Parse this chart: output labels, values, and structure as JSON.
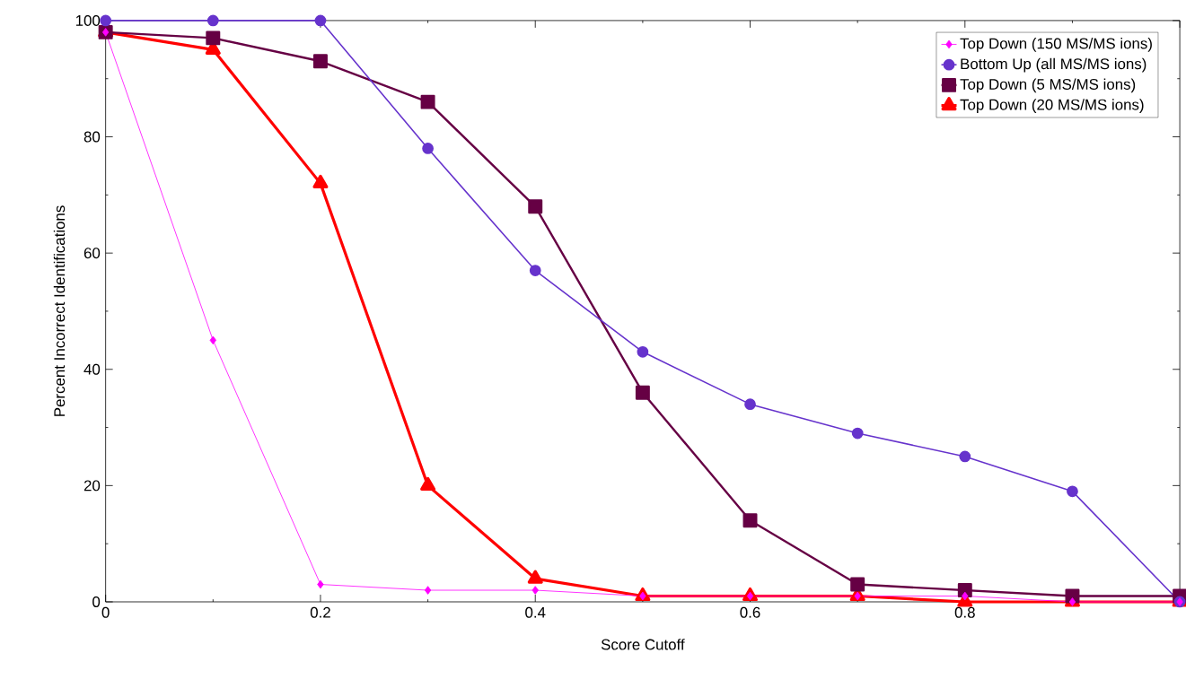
{
  "chart_data": {
    "type": "line",
    "xlabel": "Score Cutoff",
    "ylabel": "Percent Incorrect Identifications",
    "x": [
      0,
      0.1,
      0.2,
      0.3,
      0.4,
      0.5,
      0.6,
      0.7,
      0.8,
      0.9,
      1
    ],
    "xlim": [
      0,
      1
    ],
    "xticks": [
      0,
      0.2,
      0.4,
      0.6,
      0.8,
      {
        "value": 1,
        "label": null
      }
    ],
    "ylim": [
      0,
      100
    ],
    "yticks": [
      0,
      20,
      40,
      60,
      80,
      100
    ],
    "grid": false,
    "legend": "top right",
    "series": [
      {
        "name": "Bottom Up (all MS/MS ions)",
        "color": "#6633cc",
        "marker": "circle",
        "values": [
          100,
          100,
          100,
          78,
          57,
          43,
          34,
          29,
          25,
          19,
          0
        ]
      },
      {
        "name": "Top Down (5 MS/MS ions)",
        "color": "#660044",
        "marker": "square",
        "values": [
          98,
          97,
          93,
          86,
          68,
          36,
          14,
          3,
          2,
          1,
          1
        ]
      },
      {
        "name": "Top Down (150 MS/MS ions)",
        "color": "#ff00ff",
        "marker": "diamond",
        "values": [
          98,
          45,
          3,
          2,
          2,
          1,
          1,
          1,
          1,
          0,
          0
        ]
      },
      {
        "name": "Top Down (20 MS/MS ions)",
        "color": "#ff0000",
        "marker": "triangle",
        "values": [
          98,
          95,
          72,
          20,
          4,
          1,
          1,
          1,
          0,
          0,
          0
        ]
      }
    ]
  }
}
